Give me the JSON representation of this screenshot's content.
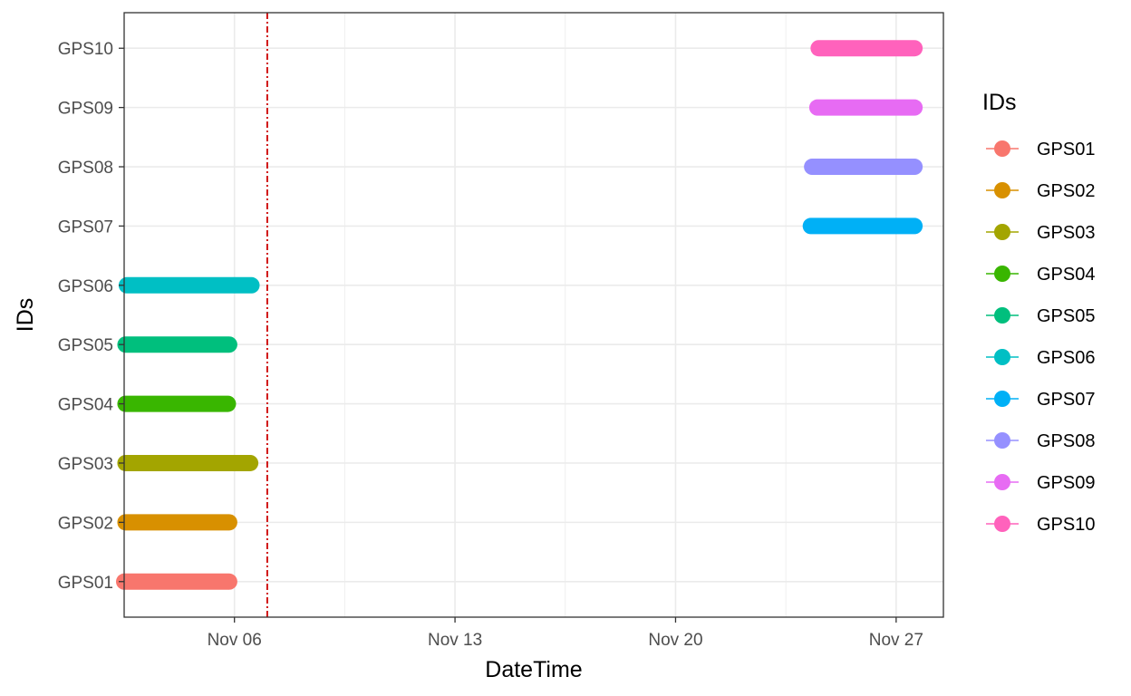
{
  "chart_data": {
    "type": "line",
    "title": "",
    "xlabel": "DateTime",
    "ylabel": "IDs",
    "x_axis_type": "date",
    "xlim": [
      "2023-11-02T12:00",
      "2023-11-28T12:00"
    ],
    "x_ticks": [
      {
        "date": "2023-11-06",
        "label": "Nov 06"
      },
      {
        "date": "2023-11-13",
        "label": "Nov 13"
      },
      {
        "date": "2023-11-20",
        "label": "Nov 20"
      },
      {
        "date": "2023-11-27",
        "label": "Nov 27"
      }
    ],
    "categories": [
      "GPS01",
      "GPS02",
      "GPS03",
      "GPS04",
      "GPS05",
      "GPS06",
      "GPS07",
      "GPS08",
      "GPS09",
      "GPS10"
    ],
    "series": [
      {
        "name": "GPS01",
        "color": "#F8766D",
        "start": "2023-11-02T12:00",
        "end": "2023-11-05T20:00"
      },
      {
        "name": "GPS02",
        "color": "#D89000",
        "start": "2023-11-02T13:00",
        "end": "2023-11-05T20:00"
      },
      {
        "name": "GPS03",
        "color": "#A3A500",
        "start": "2023-11-02T13:00",
        "end": "2023-11-06T12:00"
      },
      {
        "name": "GPS04",
        "color": "#39B600",
        "start": "2023-11-02T13:00",
        "end": "2023-11-05T19:00"
      },
      {
        "name": "GPS05",
        "color": "#00BF7D",
        "start": "2023-11-02T13:00",
        "end": "2023-11-05T20:00"
      },
      {
        "name": "GPS06",
        "color": "#00BFC4",
        "start": "2023-11-02T14:00",
        "end": "2023-11-06T13:00"
      },
      {
        "name": "GPS07",
        "color": "#00B0F6",
        "start": "2023-11-24T07:00",
        "end": "2023-11-27T14:00"
      },
      {
        "name": "GPS08",
        "color": "#9590FF",
        "start": "2023-11-24T08:00",
        "end": "2023-11-27T14:00"
      },
      {
        "name": "GPS09",
        "color": "#E76BF3",
        "start": "2023-11-24T12:00",
        "end": "2023-11-27T14:00"
      },
      {
        "name": "GPS10",
        "color": "#FF62BC",
        "start": "2023-11-24T13:00",
        "end": "2023-11-27T14:00"
      }
    ],
    "reference_line": {
      "date": "2023-11-07T01:00",
      "color": "#CC0000",
      "style": "dotdash"
    },
    "grid": true,
    "legend": {
      "title": "IDs",
      "position": "right"
    }
  }
}
